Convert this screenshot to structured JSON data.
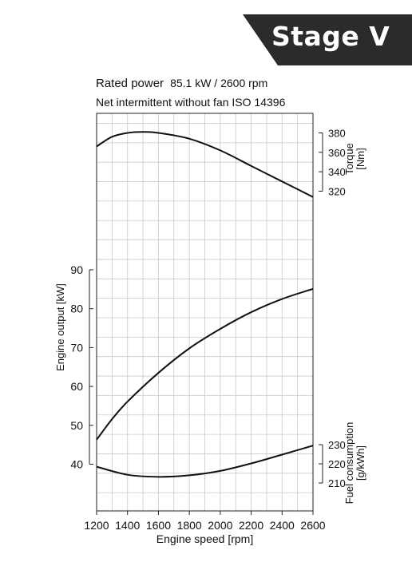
{
  "badge": {
    "label": "Stage V",
    "color": "#2b2b2b"
  },
  "header": {
    "rated_power_label": "Rated power",
    "rated_power_value": "85.1 kW / 2600 rpm",
    "subtitle": "Net intermittent without fan ISO 14396"
  },
  "chart_data": {
    "type": "line",
    "xlabel": "Engine speed [rpm]",
    "xlim": [
      1200,
      2600
    ],
    "xticks": [
      1200,
      1400,
      1600,
      1800,
      2000,
      2200,
      2400,
      2600
    ],
    "grid": true,
    "axes": {
      "output": {
        "label": "Engine output [kW]",
        "ticks": [
          40,
          50,
          60,
          70,
          80,
          90
        ]
      },
      "torque": {
        "label": "Torque\n[Nm]",
        "ticks": [
          320,
          340,
          360,
          380
        ]
      },
      "fuel": {
        "label": "Fuel consumption\n[g/kWh]",
        "ticks": [
          210,
          220,
          230
        ]
      }
    },
    "series": [
      {
        "axis": "torque",
        "x": [
          1200,
          1300,
          1400,
          1500,
          1600,
          1800,
          2000,
          2200,
          2400,
          2600
        ],
        "y": [
          366,
          376,
          380,
          381,
          380,
          374,
          362,
          346,
          330,
          314
        ]
      },
      {
        "axis": "output",
        "x": [
          1200,
          1300,
          1400,
          1600,
          1800,
          2000,
          2200,
          2400,
          2600
        ],
        "y": [
          46.3,
          51.6,
          56.1,
          63.5,
          69.8,
          74.8,
          79.1,
          82.5,
          85.1
        ]
      },
      {
        "axis": "fuel",
        "x": [
          1200,
          1400,
          1600,
          1800,
          2000,
          2200,
          2400,
          2600
        ],
        "y": [
          218.5,
          214.3,
          213.2,
          214.0,
          216.3,
          220.2,
          224.8,
          229.5
        ]
      }
    ]
  }
}
